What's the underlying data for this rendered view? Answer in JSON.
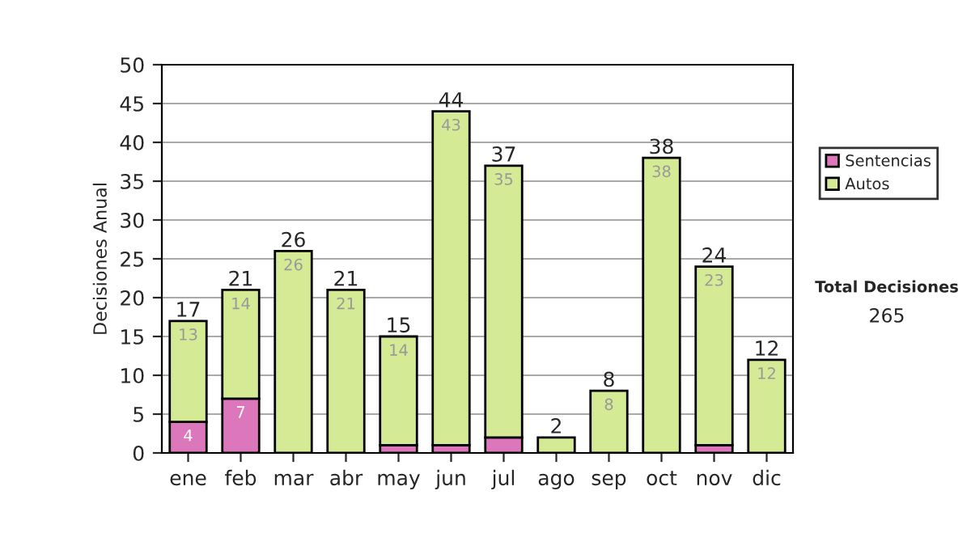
{
  "chart_data": {
    "type": "bar",
    "stacked": true,
    "ylabel": "Decisiones Anual",
    "categories": [
      "ene",
      "feb",
      "mar",
      "abr",
      "may",
      "jun",
      "jul",
      "ago",
      "sep",
      "oct",
      "nov",
      "dic"
    ],
    "series": [
      {
        "name": "Sentencias",
        "color": "#dd77bb",
        "values": [
          4,
          7,
          0,
          0,
          1,
          1,
          2,
          0,
          0,
          0,
          1,
          0
        ],
        "value_labels": [
          "4",
          "7",
          null,
          null,
          null,
          null,
          null,
          null,
          null,
          null,
          null,
          null
        ]
      },
      {
        "name": "Autos",
        "color": "#d4ea94",
        "values": [
          13,
          14,
          26,
          21,
          14,
          43,
          35,
          2,
          8,
          38,
          23,
          12
        ],
        "value_labels": [
          "13",
          "14",
          "26",
          "21",
          "14",
          "43",
          "35",
          null,
          "8",
          "38",
          "23",
          "12"
        ]
      }
    ],
    "totals": [
      "17",
      "21",
      "26",
      "21",
      "15",
      "44",
      "37",
      "2",
      "8",
      "38",
      "24",
      "12"
    ],
    "ylim": [
      0,
      50
    ],
    "yticks": [
      0,
      5,
      10,
      15,
      20,
      25,
      30,
      35,
      40,
      45,
      50
    ],
    "grid": "y",
    "legend": "right",
    "annotations": [
      "Total Decisiones",
      "265"
    ]
  }
}
